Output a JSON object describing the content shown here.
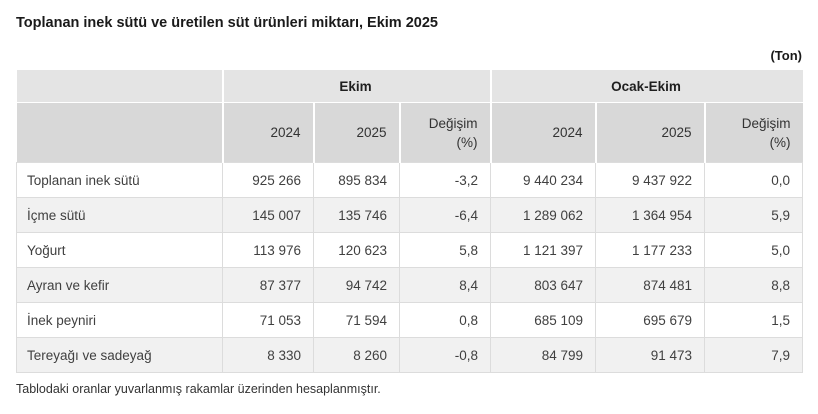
{
  "title": "Toplanan inek sütü ve üretilen süt ürünleri miktarı, Ekim 2025",
  "unit_label": "(Ton)",
  "footnote": "Tablodaki oranlar yuvarlanmış rakamlar üzerinden hesaplanmıştır.",
  "header": {
    "group_ekim": "Ekim",
    "group_ocak_ekim": "Ocak-Ekim",
    "year_2024": "2024",
    "year_2025": "2025",
    "change_line1": "Değişim",
    "change_line2": "(%)"
  },
  "colors": {
    "group_header_bg": "#e4e4e4",
    "sub_header_bg": "#d8d8d8",
    "row_alt_bg": "#f1f1f1",
    "row_bg": "#ffffff",
    "cell_border": "#dcdcdc",
    "header_separator": "#ffffff",
    "text": "#404040",
    "title_text": "#1a1a1a"
  },
  "chart_data": {
    "type": "table",
    "title": "Toplanan inek sütü ve üretilen süt ürünleri miktarı, Ekim 2025",
    "unit": "Ton",
    "column_groups": [
      {
        "label": "",
        "span": 1
      },
      {
        "label": "Ekim",
        "span": 3
      },
      {
        "label": "Ocak-Ekim",
        "span": 3
      }
    ],
    "columns": [
      "",
      "2024",
      "2025",
      "Değişim (%)",
      "2024",
      "2025",
      "Değişim (%)"
    ],
    "rows": [
      {
        "label": "Toplanan inek sütü",
        "values": [
          "925 266",
          "895 834",
          "-3,2",
          "9 440 234",
          "9 437 922",
          "0,0"
        ]
      },
      {
        "label": "İçme sütü",
        "values": [
          "145 007",
          "135 746",
          "-6,4",
          "1 289 062",
          "1 364 954",
          "5,9"
        ]
      },
      {
        "label": "Yoğurt",
        "values": [
          "113 976",
          "120 623",
          "5,8",
          "1 121 397",
          "1 177 233",
          "5,0"
        ]
      },
      {
        "label": "Ayran ve kefir",
        "values": [
          "87 377",
          "94 742",
          "8,4",
          "803 647",
          "874 481",
          "8,8"
        ]
      },
      {
        "label": "İnek peyniri",
        "values": [
          "71 053",
          "71 594",
          "0,8",
          "685 109",
          "695 679",
          "1,5"
        ]
      },
      {
        "label": "Tereyağı ve sadeyağ",
        "values": [
          "8 330",
          "8 260",
          "-0,8",
          "84 799",
          "91 473",
          "7,9"
        ]
      }
    ],
    "footnote": "Tablodaki oranlar yuvarlanmış rakamlar üzerinden hesaplanmıştır."
  }
}
